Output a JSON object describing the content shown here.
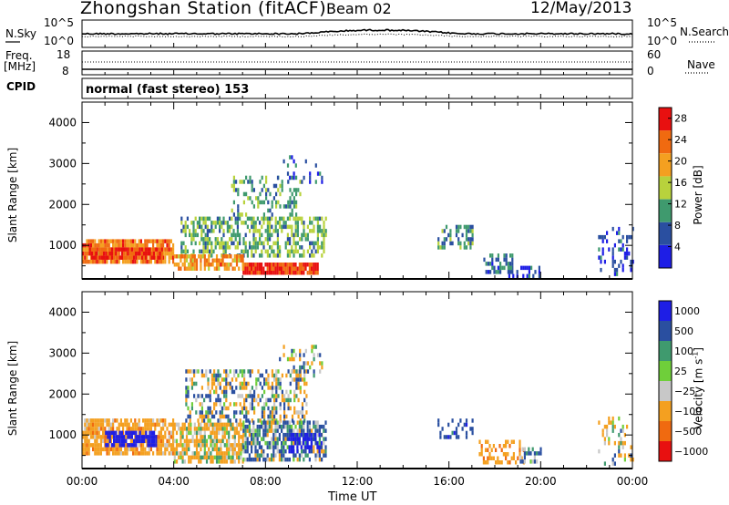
{
  "header": {
    "title": "Zhongshan Station (fitACF)",
    "beam": "Beam 02",
    "date": "12/May/2013"
  },
  "strips": {
    "nsky_label": "N.Sky",
    "nsky_ticks": [
      "10^5",
      "10^0"
    ],
    "nsearch_label": "N.Search",
    "nsearch_ticks": [
      "10^5",
      "10^0"
    ],
    "freq_label_1": "Freq.",
    "freq_label_2": "[MHz]",
    "freq_ticks": [
      "18",
      "8"
    ],
    "nave_label": "Nave",
    "nave_ticks": [
      "60",
      "0"
    ],
    "cpid_label": "CPID",
    "mode": "normal (fast stereo) 153"
  },
  "colors": {
    "power_scale": [
      "#1e1ee6",
      "#2a4fa0",
      "#3f9a6e",
      "#b8d23c",
      "#f4a020",
      "#f06a10",
      "#e81010"
    ],
    "velocity_scale": [
      "#e81010",
      "#f06a10",
      "#f4a020",
      "#c8c8c8",
      "#6fcf3a",
      "#3f9a6e",
      "#2a4fa0",
      "#1e1ee6"
    ]
  },
  "chart_data": [
    {
      "type": "heatmap",
      "title": "",
      "xlabel": "",
      "ylabel": "Slant Range [km]",
      "x_ticks": [
        "00:00",
        "04:00",
        "08:00",
        "12:00",
        "16:00",
        "20:00",
        "00:00"
      ],
      "y_ticks": [
        1000,
        2000,
        3000,
        4000
      ],
      "xlim_hours": [
        0,
        24
      ],
      "ylim_km": [
        180,
        4500
      ],
      "colorbar": {
        "label": "Power [dB]",
        "ticks": [
          4,
          8,
          12,
          16,
          20,
          24,
          28
        ],
        "range": [
          0,
          30
        ]
      },
      "regions": [
        {
          "t": [
            0.0,
            4.0
          ],
          "r": [
            550,
            1150
          ],
          "value": 22,
          "density": 0.85
        },
        {
          "t": [
            0.3,
            3.5
          ],
          "r": [
            650,
            950
          ],
          "value": 27,
          "density": 0.9
        },
        {
          "t": [
            4.3,
            10.6
          ],
          "r": [
            700,
            1700
          ],
          "value": 12,
          "density": 0.55
        },
        {
          "t": [
            6.5,
            9.5
          ],
          "r": [
            1700,
            2700
          ],
          "value": 10,
          "density": 0.3
        },
        {
          "t": [
            7.0,
            10.3
          ],
          "r": [
            280,
            550
          ],
          "value": 27,
          "density": 0.95
        },
        {
          "t": [
            4.0,
            7.0
          ],
          "r": [
            380,
            700
          ],
          "value": 21,
          "density": 0.7
        },
        {
          "t": [
            8.5,
            10.5
          ],
          "r": [
            2500,
            3200
          ],
          "value": 6,
          "density": 0.15
        },
        {
          "t": [
            15.5,
            17.0
          ],
          "r": [
            900,
            1500
          ],
          "value": 9,
          "density": 0.45
        },
        {
          "t": [
            17.5,
            18.8
          ],
          "r": [
            300,
            800
          ],
          "value": 8,
          "density": 0.45
        },
        {
          "t": [
            18.5,
            20.0
          ],
          "r": [
            200,
            450
          ],
          "value": 5,
          "density": 0.35
        },
        {
          "t": [
            22.5,
            24.0
          ],
          "r": [
            250,
            1400
          ],
          "value": 5,
          "density": 0.25
        }
      ]
    },
    {
      "type": "heatmap",
      "title": "",
      "xlabel": "Time UT",
      "ylabel": "Slant Range [km]",
      "x_ticks": [
        "00:00",
        "04:00",
        "08:00",
        "12:00",
        "16:00",
        "20:00",
        "00:00"
      ],
      "y_ticks": [
        1000,
        2000,
        3000,
        4000
      ],
      "xlim_hours": [
        0,
        24
      ],
      "ylim_km": [
        180,
        4500
      ],
      "colorbar": {
        "label": "Velocity [m s^-1]",
        "ticks": [
          "1000",
          "500",
          "100",
          "25",
          "−25",
          "−100",
          "−500",
          "−1000"
        ],
        "range": [
          -1500,
          1500
        ]
      },
      "regions": [
        {
          "t": [
            0.0,
            4.0
          ],
          "r": [
            500,
            1400
          ],
          "value": -300,
          "density": 0.8
        },
        {
          "t": [
            1.0,
            3.2
          ],
          "r": [
            700,
            1100
          ],
          "value": 900,
          "density": 0.7
        },
        {
          "t": [
            4.0,
            7.0
          ],
          "r": [
            300,
            1300
          ],
          "value": -150,
          "density": 0.7
        },
        {
          "t": [
            4.5,
            9.8
          ],
          "r": [
            1300,
            2600
          ],
          "value": 0,
          "density": 0.45
        },
        {
          "t": [
            7.0,
            10.6
          ],
          "r": [
            350,
            1300
          ],
          "value": 80,
          "density": 0.7
        },
        {
          "t": [
            9.0,
            10.4
          ],
          "r": [
            550,
            1000
          ],
          "value": 700,
          "density": 0.55
        },
        {
          "t": [
            8.5,
            10.5
          ],
          "r": [
            2400,
            3200
          ],
          "value": 0,
          "density": 0.2
        },
        {
          "t": [
            15.5,
            17.0
          ],
          "r": [
            900,
            1400
          ],
          "value": 300,
          "density": 0.4
        },
        {
          "t": [
            17.3,
            19.3
          ],
          "r": [
            280,
            800
          ],
          "value": -400,
          "density": 0.4
        },
        {
          "t": [
            19.0,
            20.0
          ],
          "r": [
            300,
            650
          ],
          "value": 150,
          "density": 0.35
        },
        {
          "t": [
            22.5,
            24.0
          ],
          "r": [
            250,
            1400
          ],
          "value": -100,
          "density": 0.2
        }
      ]
    }
  ]
}
